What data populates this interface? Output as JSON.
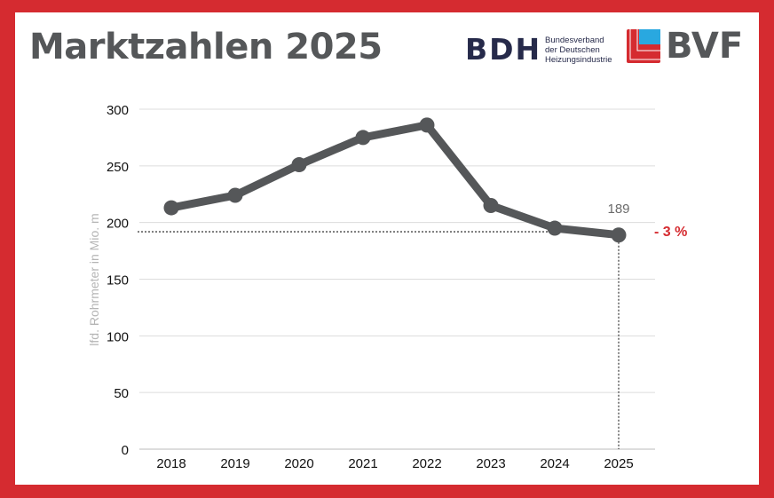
{
  "header": {
    "title": "Marktzahlen 2025",
    "logo_bdh": "BDH",
    "logo_bdh_subtitle": [
      "Bundesverband",
      "der Deutschen",
      "Heizungsindustrie"
    ],
    "logo_bvf": "BVF"
  },
  "colors": {
    "frame": "#d52b30",
    "line": "#555759",
    "accent": "#d52b30",
    "bvf_blue": "#29a8e0"
  },
  "chart_data": {
    "type": "line",
    "title": "",
    "xlabel": "",
    "ylabel": "lfd. Rohrmeter in Mio. m",
    "categories": [
      "2018",
      "2019",
      "2020",
      "2021",
      "2022",
      "2023",
      "2024",
      "2025"
    ],
    "values": [
      213,
      224,
      251,
      275,
      286,
      215,
      195,
      189
    ],
    "ylim": [
      0,
      300
    ],
    "yticks": [
      0,
      50,
      100,
      150,
      200,
      250,
      300
    ],
    "grid": true,
    "annotations": {
      "last_value_label": "189",
      "change_label": "- 3 %"
    }
  }
}
